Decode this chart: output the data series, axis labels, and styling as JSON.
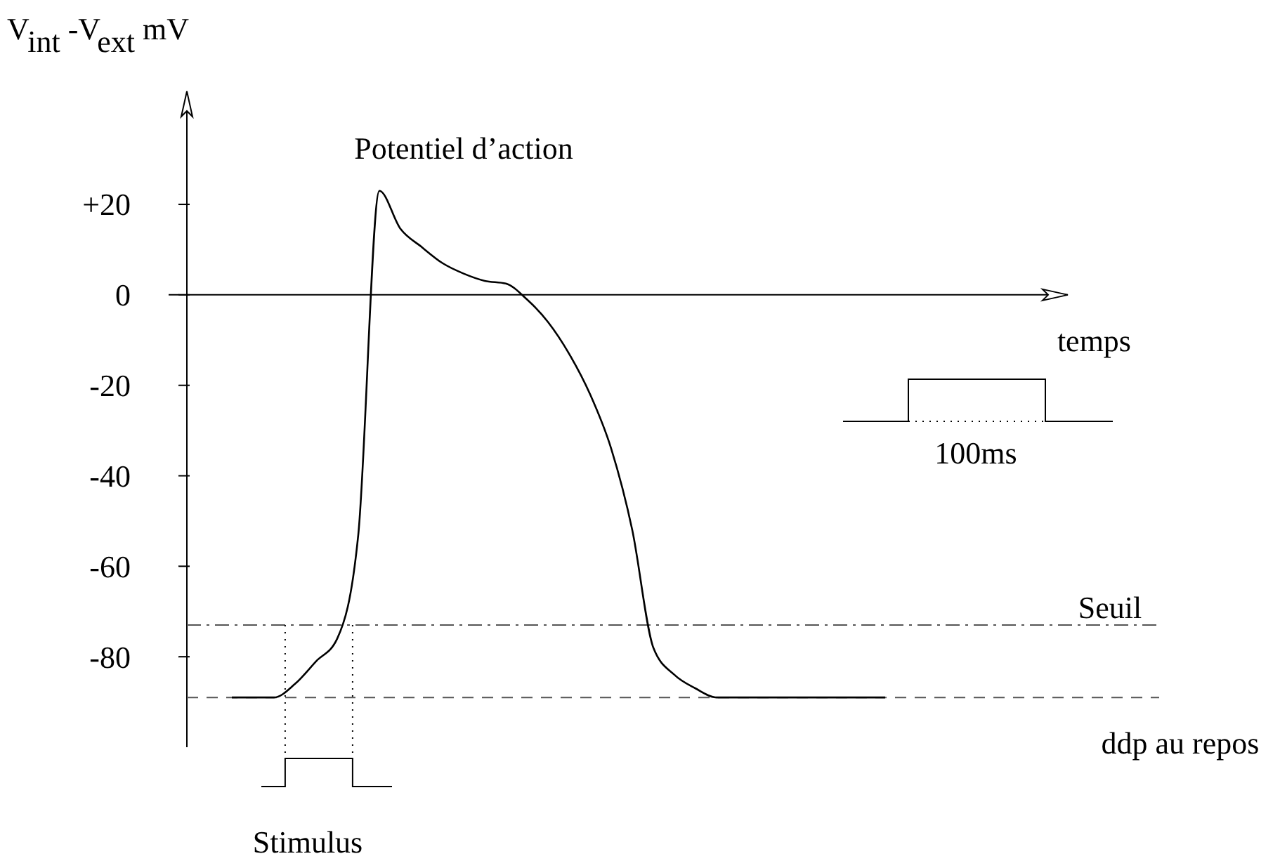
{
  "chart_data": {
    "type": "line",
    "ylabel": "V$_{int}$ -V$_{ext}$ mV",
    "xlabel": "temps",
    "categories": [
      null,
      null,
      null,
      null,
      null,
      null,
      null,
      null,
      null,
      null,
      null,
      null,
      null,
      null,
      null,
      null,
      null,
      null,
      null,
      null,
      null,
      null,
      null,
      null,
      null,
      null,
      null,
      null,
      null,
      null,
      null,
      null,
      null,
      null,
      null,
      null,
      null,
      null,
      null,
      null,
      null,
      null
    ],
    "series": [
      {
        "color": "#000000",
        "line_style": "solid",
        "marker": "none",
        "values": [
          null,
          null,
          -89,
          -89,
          -89,
          -86,
          -81,
          -76,
          -53,
          23,
          14.6,
          10.6,
          7,
          4.7,
          3.1,
          2.5,
          -1,
          -6,
          -13,
          -22,
          -34,
          -52,
          -78,
          -84,
          -87,
          -89,
          -89,
          -89,
          -89,
          -89,
          -89,
          -89,
          -89,
          -89,
          null,
          null,
          null,
          null,
          null,
          null,
          null,
          null
        ]
      }
    ],
    "ylim": [
      -100,
      45
    ],
    "yticks": [
      {
        "value": 20,
        "label": "+20"
      },
      0,
      -20,
      -40,
      -60,
      -80
    ],
    "ref_lines": [
      {
        "axis": "y",
        "value": -73,
        "label": "Seuil",
        "color": "#555555",
        "line_style": "dashdot"
      },
      {
        "axis": "y",
        "value": -89,
        "label": "ddp au repos",
        "color": "#555555",
        "line_style": "dashed"
      }
    ],
    "annotations": [
      "Potentiel d’action",
      "Stimulus",
      "100ms"
    ]
  }
}
